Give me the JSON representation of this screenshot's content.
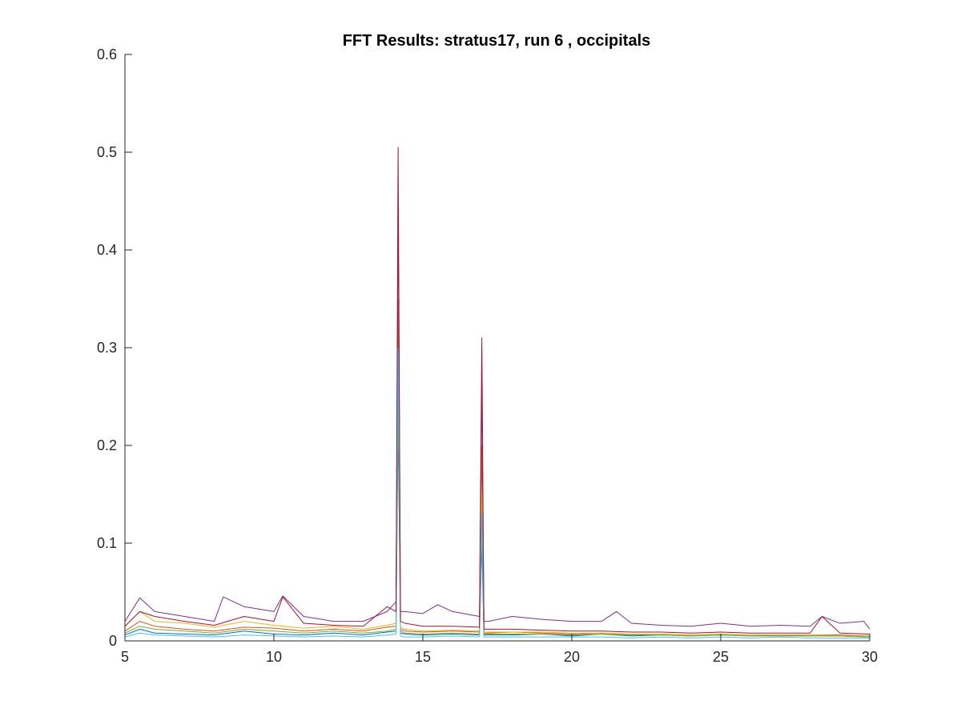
{
  "chart_data": {
    "type": "line",
    "title": "FFT Results: stratus17, run 6 , occipitals",
    "xlabel": "",
    "ylabel": "",
    "xlim": [
      5,
      30
    ],
    "ylim": [
      0,
      0.6
    ],
    "x_ticks": [
      5,
      10,
      15,
      20,
      25,
      30
    ],
    "x_tick_labels": [
      "5",
      "10",
      "15",
      "20",
      "25",
      "30"
    ],
    "y_ticks": [
      0,
      0.1,
      0.2,
      0.3,
      0.4,
      0.5,
      0.6
    ],
    "y_tick_labels": [
      "0",
      "0.1",
      "0.2",
      "0.3",
      "0.4",
      "0.5",
      "0.6"
    ],
    "grid": false,
    "legend": "none",
    "series": [
      {
        "color": "#0072BD",
        "x": [
          5,
          5.5,
          6,
          7,
          8,
          9,
          10,
          11,
          12,
          13,
          13.8,
          14.1,
          14.17,
          14.25,
          14.4,
          15,
          16,
          16.9,
          16.98,
          17.05,
          17.2,
          18,
          19,
          20,
          21,
          22,
          23,
          24,
          25,
          26,
          27,
          28,
          29,
          30
        ],
        "y": [
          0.006,
          0.012,
          0.008,
          0.007,
          0.006,
          0.01,
          0.007,
          0.006,
          0.008,
          0.006,
          0.009,
          0.01,
          0.22,
          0.008,
          0.007,
          0.006,
          0.007,
          0.006,
          0.1,
          0.006,
          0.006,
          0.006,
          0.007,
          0.005,
          0.007,
          0.005,
          0.006,
          0.005,
          0.006,
          0.005,
          0.006,
          0.005,
          0.005,
          0.004
        ]
      },
      {
        "color": "#D95319",
        "x": [
          5,
          5.5,
          6,
          7,
          8,
          9,
          10,
          11,
          12,
          13,
          13.8,
          14.1,
          14.17,
          14.25,
          14.4,
          15,
          16,
          16.9,
          16.98,
          17.05,
          17.2,
          18,
          19,
          20,
          21,
          22,
          23,
          24,
          25,
          26,
          27,
          28,
          29,
          30
        ],
        "y": [
          0.01,
          0.02,
          0.015,
          0.012,
          0.01,
          0.014,
          0.013,
          0.01,
          0.012,
          0.01,
          0.014,
          0.015,
          0.35,
          0.012,
          0.01,
          0.009,
          0.01,
          0.009,
          0.2,
          0.008,
          0.008,
          0.009,
          0.008,
          0.007,
          0.008,
          0.006,
          0.007,
          0.006,
          0.007,
          0.006,
          0.006,
          0.006,
          0.006,
          0.005
        ]
      },
      {
        "color": "#EDB120",
        "x": [
          5,
          5.5,
          6,
          7,
          8,
          9,
          10,
          11,
          12,
          13,
          13.8,
          14.1,
          14.17,
          14.25,
          14.4,
          15,
          16,
          16.9,
          16.98,
          17.05,
          17.2,
          18,
          19,
          20,
          21,
          22,
          23,
          24,
          25,
          26,
          27,
          28,
          29,
          30
        ],
        "y": [
          0.015,
          0.03,
          0.02,
          0.018,
          0.014,
          0.02,
          0.016,
          0.013,
          0.015,
          0.012,
          0.016,
          0.018,
          0.3,
          0.014,
          0.012,
          0.01,
          0.011,
          0.01,
          0.15,
          0.009,
          0.009,
          0.009,
          0.009,
          0.008,
          0.008,
          0.007,
          0.007,
          0.006,
          0.007,
          0.006,
          0.006,
          0.006,
          0.005,
          0.005
        ]
      },
      {
        "color": "#7E2F8E",
        "x": [
          5,
          5.5,
          6,
          7,
          8,
          8.3,
          9,
          10,
          10.3,
          11,
          12,
          13,
          13.8,
          14.1,
          14.17,
          14.25,
          14.4,
          15,
          15.5,
          16,
          16.9,
          16.98,
          17.05,
          17.2,
          18,
          19,
          20,
          21,
          21.5,
          22,
          23,
          24,
          25,
          26,
          27,
          28,
          28.4,
          29,
          29.8,
          30
        ],
        "y": [
          0.02,
          0.044,
          0.03,
          0.025,
          0.02,
          0.045,
          0.035,
          0.03,
          0.046,
          0.025,
          0.02,
          0.02,
          0.03,
          0.04,
          0.44,
          0.03,
          0.03,
          0.028,
          0.037,
          0.03,
          0.025,
          0.26,
          0.02,
          0.02,
          0.025,
          0.022,
          0.02,
          0.02,
          0.03,
          0.018,
          0.016,
          0.015,
          0.018,
          0.015,
          0.016,
          0.015,
          0.025,
          0.018,
          0.02,
          0.012
        ]
      },
      {
        "color": "#77AC30",
        "x": [
          5,
          5.5,
          6,
          7,
          8,
          9,
          10,
          11,
          12,
          13,
          13.8,
          14.1,
          14.17,
          14.25,
          14.4,
          15,
          16,
          16.9,
          16.98,
          17.05,
          17.2,
          18,
          19,
          20,
          21,
          22,
          23,
          24,
          25,
          26,
          27,
          28,
          29,
          30
        ],
        "y": [
          0.008,
          0.015,
          0.012,
          0.01,
          0.008,
          0.012,
          0.01,
          0.008,
          0.01,
          0.008,
          0.01,
          0.012,
          0.25,
          0.01,
          0.008,
          0.007,
          0.008,
          0.007,
          0.12,
          0.007,
          0.007,
          0.007,
          0.007,
          0.006,
          0.007,
          0.006,
          0.006,
          0.005,
          0.006,
          0.005,
          0.005,
          0.005,
          0.005,
          0.004
        ]
      },
      {
        "color": "#4DBEEE",
        "x": [
          5,
          5.5,
          6,
          7,
          8,
          9,
          10,
          11,
          12,
          13,
          13.8,
          14.1,
          14.17,
          14.25,
          14.4,
          15,
          16,
          16.9,
          16.98,
          17.05,
          17.2,
          18,
          19,
          20,
          21,
          22,
          23,
          24,
          25,
          26,
          27,
          28,
          29,
          30
        ],
        "y": [
          0.004,
          0.008,
          0.006,
          0.005,
          0.004,
          0.006,
          0.005,
          0.004,
          0.005,
          0.004,
          0.006,
          0.007,
          0.3,
          0.005,
          0.004,
          0.004,
          0.005,
          0.004,
          0.13,
          0.004,
          0.004,
          0.004,
          0.004,
          0.004,
          0.004,
          0.003,
          0.004,
          0.003,
          0.004,
          0.003,
          0.004,
          0.003,
          0.003,
          0.003
        ]
      },
      {
        "color": "#A2142F",
        "x": [
          5,
          5.5,
          6,
          7,
          8,
          9,
          10,
          10.3,
          11,
          12,
          13,
          13.8,
          14.1,
          14.17,
          14.25,
          14.4,
          15,
          16,
          16.9,
          16.98,
          17.05,
          17.2,
          18,
          19,
          20,
          21,
          22,
          23,
          24,
          25,
          26,
          27,
          28,
          28.4,
          29,
          30
        ],
        "y": [
          0.015,
          0.03,
          0.025,
          0.02,
          0.016,
          0.025,
          0.02,
          0.045,
          0.018,
          0.016,
          0.015,
          0.035,
          0.03,
          0.505,
          0.02,
          0.018,
          0.015,
          0.015,
          0.014,
          0.31,
          0.012,
          0.012,
          0.012,
          0.011,
          0.01,
          0.01,
          0.009,
          0.009,
          0.008,
          0.009,
          0.008,
          0.008,
          0.008,
          0.025,
          0.008,
          0.007
        ]
      }
    ]
  }
}
